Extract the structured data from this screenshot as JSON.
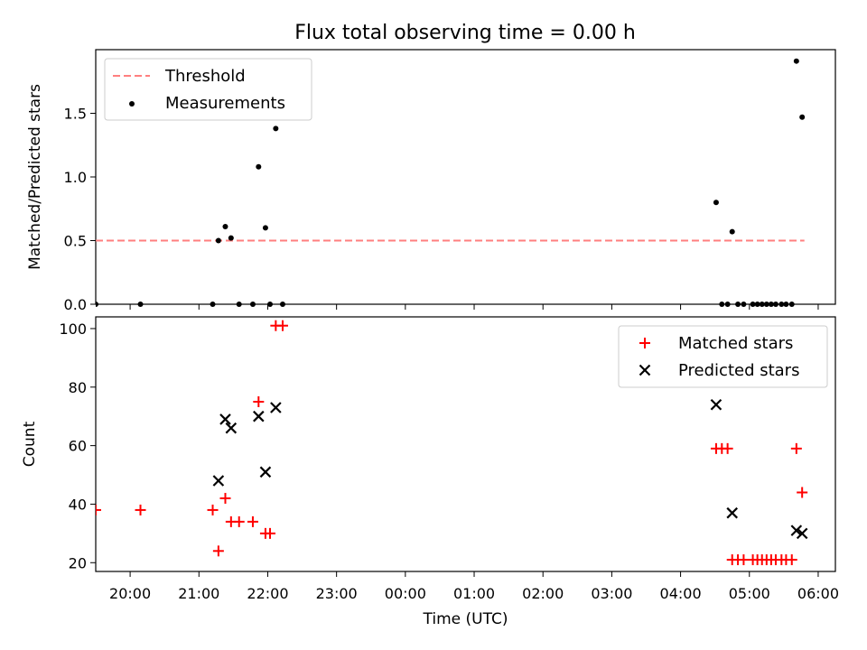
{
  "title": "Flux total observing time = 0.00 h",
  "x_tick_labels": [
    "20:00",
    "21:00",
    "22:00",
    "23:00",
    "00:00",
    "01:00",
    "02:00",
    "03:00",
    "04:00",
    "05:00",
    "06:00"
  ],
  "chart_data": [
    {
      "type": "scatter",
      "panel": "top",
      "ylabel": "Matched/Predicted stars",
      "xlabel": "",
      "xlim": [
        "19:30",
        "06:15"
      ],
      "ylim": [
        0,
        2.0
      ],
      "yticks": [
        0.0,
        0.5,
        1.0,
        1.5
      ],
      "ytick_labels": [
        "0.0",
        "0.5",
        "1.0",
        "1.5"
      ],
      "legend_position": "top-left",
      "colors": {
        "threshold": "#ff7f7f",
        "measurements": "#000000"
      },
      "series": [
        {
          "name": "Threshold",
          "style": "dashed-line",
          "x": [
            "19:30",
            "05:48"
          ],
          "y": [
            0.5,
            0.5
          ]
        },
        {
          "name": "Measurements",
          "style": "dot",
          "x": [
            "19:30",
            "20:09",
            "21:12",
            "21:17",
            "21:23",
            "21:28",
            "21:35",
            "21:47",
            "21:52",
            "21:58",
            "22:02",
            "22:07",
            "22:13",
            "04:31",
            "04:36",
            "04:41",
            "04:45",
            "04:50",
            "04:55",
            "05:03",
            "05:07",
            "05:11",
            "05:15",
            "05:19",
            "05:23",
            "05:28",
            "05:32",
            "05:37",
            "05:41",
            "05:46"
          ],
          "y": [
            0.0,
            0.0,
            0.0,
            0.5,
            0.61,
            0.52,
            0.0,
            0.0,
            1.08,
            0.6,
            0.0,
            1.38,
            0.0,
            0.8,
            0.0,
            0.0,
            0.57,
            0.0,
            0.0,
            0.0,
            0.0,
            0.0,
            0.0,
            0.0,
            0.0,
            0.0,
            0.0,
            0.0,
            1.91,
            1.47
          ]
        }
      ]
    },
    {
      "type": "scatter",
      "panel": "bottom",
      "ylabel": "Count",
      "xlabel": "Time (UTC)",
      "xlim": [
        "19:30",
        "06:15"
      ],
      "ylim": [
        17,
        104
      ],
      "yticks": [
        20,
        40,
        60,
        80,
        100
      ],
      "ytick_labels": [
        "20",
        "40",
        "60",
        "80",
        "100"
      ],
      "legend_position": "top-right",
      "colors": {
        "matched": "#ff0000",
        "predicted": "#000000"
      },
      "series": [
        {
          "name": "Matched stars",
          "marker": "plus",
          "x": [
            "19:30",
            "20:09",
            "21:12",
            "21:17",
            "21:23",
            "21:28",
            "21:35",
            "21:47",
            "21:52",
            "21:58",
            "22:02",
            "22:07",
            "22:13",
            "04:31",
            "04:36",
            "04:41",
            "04:45",
            "04:50",
            "04:55",
            "05:03",
            "05:07",
            "05:11",
            "05:15",
            "05:19",
            "05:23",
            "05:28",
            "05:32",
            "05:37",
            "05:41",
            "05:46"
          ],
          "y": [
            38,
            38,
            38,
            24,
            42,
            34,
            34,
            34,
            75,
            30,
            30,
            101,
            101,
            59,
            59,
            59,
            21,
            21,
            21,
            21,
            21,
            21,
            21,
            21,
            21,
            21,
            21,
            21,
            59,
            44
          ]
        },
        {
          "name": "Predicted stars",
          "marker": "x",
          "x": [
            "21:17",
            "21:23",
            "21:28",
            "21:52",
            "21:58",
            "22:07",
            "04:31",
            "04:45",
            "05:41",
            "05:46"
          ],
          "y": [
            48,
            69,
            66,
            70,
            51,
            73,
            74,
            37,
            31,
            30
          ]
        }
      ]
    }
  ]
}
